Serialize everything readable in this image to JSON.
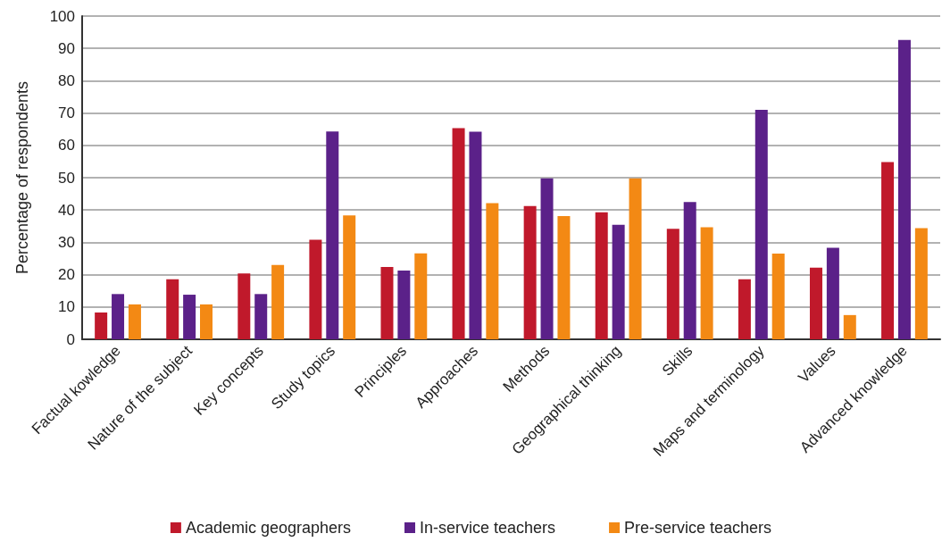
{
  "chart_data": {
    "type": "bar",
    "ylabel": "Percentage of respondents",
    "categories": [
      "Factual kowledge",
      "Nature of the subject",
      "Key concepts",
      "Study topics",
      "Principles",
      "Approaches",
      "Methods",
      "Geographical thinking",
      "Skills",
      "Maps and terminology",
      "Values",
      "Advanced knowledge"
    ],
    "series": [
      {
        "name": "Academic geographers",
        "color": "#c0192b",
        "values": [
          8.3,
          18.6,
          20.4,
          30.8,
          22.4,
          65.3,
          41.2,
          39.3,
          34.2,
          18.6,
          22.2,
          54.8
        ]
      },
      {
        "name": "In-service teachers",
        "color": "#5b2189",
        "values": [
          14,
          13.8,
          14,
          64.3,
          21.3,
          64.2,
          49.8,
          35.4,
          42.5,
          71,
          28.3,
          92.6
        ]
      },
      {
        "name": "Pre-service teachers",
        "color": "#f38914",
        "values": [
          10.8,
          10.8,
          23,
          38.3,
          26.6,
          42.1,
          38.1,
          49.8,
          34.7,
          26.5,
          7.5,
          34.4
        ]
      }
    ],
    "ylim": [
      0,
      100
    ],
    "yticks": [
      0,
      10,
      20,
      30,
      40,
      50,
      60,
      70,
      80,
      90,
      100
    ],
    "grid": "y",
    "legend": "bottom"
  }
}
